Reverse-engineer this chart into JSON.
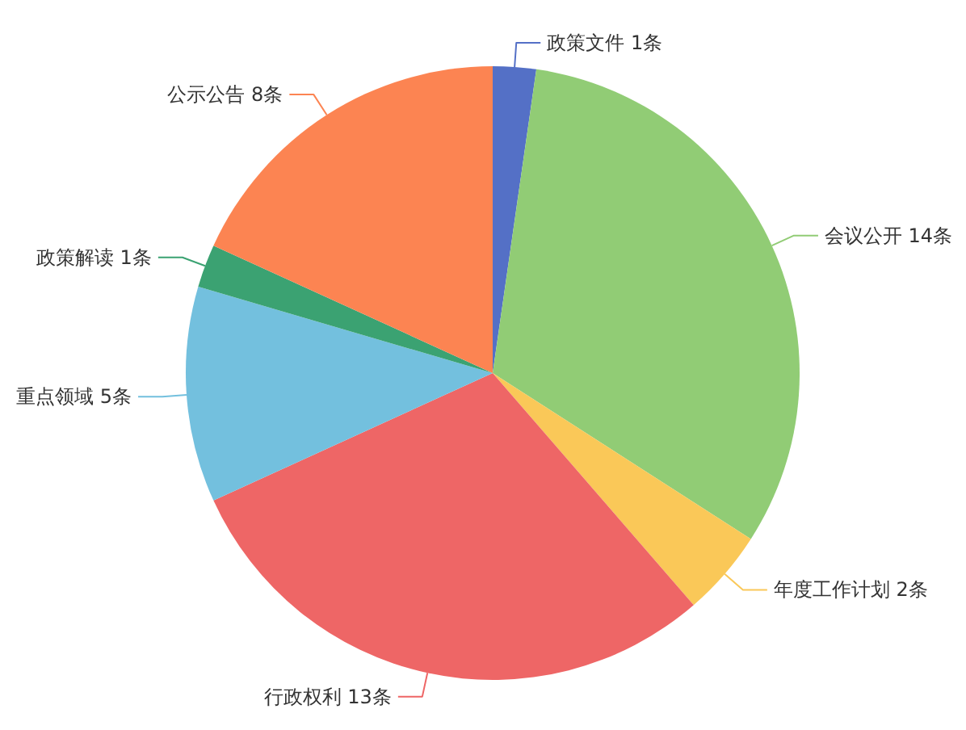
{
  "chart_data": {
    "type": "pie",
    "categories": [
      "政策文件",
      "会议公开",
      "年度工作计划",
      "行政权利",
      "重点领域",
      "政策解读",
      "公示公告"
    ],
    "values": [
      1,
      14,
      2,
      13,
      5,
      1,
      8
    ],
    "value_labels": [
      "1条",
      "14条",
      "2条",
      "13条",
      "5条",
      "1条",
      "8条"
    ],
    "colors": [
      "#5470c6",
      "#91cc75",
      "#fac858",
      "#ee6666",
      "#73c0de",
      "#3ba272",
      "#fc8452"
    ]
  }
}
